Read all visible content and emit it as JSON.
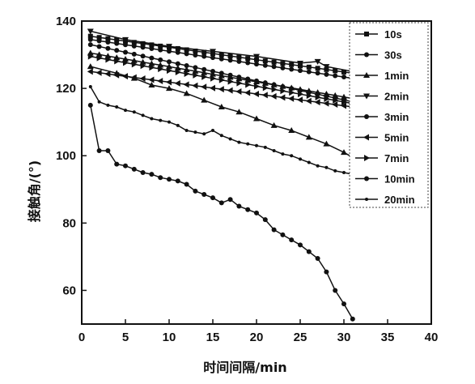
{
  "chart_data": {
    "type": "line",
    "xlabel": "时间间隔/min",
    "ylabel": "接触角/(°)",
    "xlim": [
      0,
      40
    ],
    "ylim": [
      50,
      140
    ],
    "xticks": [
      "0",
      "5",
      "10",
      "15",
      "20",
      "25",
      "30",
      "35",
      "40"
    ],
    "yticks": [
      "60",
      "80",
      "100",
      "120",
      "140"
    ],
    "legend_position": "top-right",
    "series_color": "#111111",
    "series": [
      {
        "name": "10s",
        "marker": "square",
        "x": [
          1,
          31
        ],
        "y": [
          135.5,
          124.5
        ]
      },
      {
        "name": "30s",
        "marker": "circle",
        "x": [
          1,
          31
        ],
        "y": [
          134.5,
          123.0
        ]
      },
      {
        "name": "1min",
        "marker": "triangle-up",
        "x": [
          1,
          31
        ],
        "y": [
          130.5,
          117.0
        ]
      },
      {
        "name": "2min",
        "marker": "triangle-down",
        "x": [
          1,
          5,
          10,
          15,
          20,
          25,
          27,
          28,
          31
        ],
        "y": [
          137.0,
          134.5,
          132.5,
          131.0,
          129.5,
          127.5,
          128.0,
          126.5,
          125.0
        ]
      },
      {
        "name": "3min",
        "marker": "circle",
        "x": [
          1,
          31
        ],
        "y": [
          133.0,
          116.0
        ]
      },
      {
        "name": "5min",
        "marker": "triangle-left",
        "x": [
          1,
          31
        ],
        "y": [
          125.0,
          114.5
        ]
      },
      {
        "name": "7min",
        "marker": "triangle-right",
        "x": [
          1,
          31
        ],
        "y": [
          129.5,
          115.5
        ]
      },
      {
        "name": "10min",
        "marker": "circle",
        "x": [
          1,
          2,
          3,
          4,
          5,
          6,
          7,
          8,
          9,
          10,
          11,
          12,
          13,
          14,
          15,
          16,
          17,
          18,
          19,
          20,
          21,
          22,
          23,
          24,
          25,
          26,
          27,
          28,
          29,
          30,
          31
        ],
        "y": [
          115.0,
          101.5,
          101.5,
          97.5,
          97.0,
          96.0,
          95.0,
          94.5,
          93.5,
          93.0,
          92.5,
          91.5,
          89.5,
          88.5,
          87.5,
          86.0,
          87.0,
          85.0,
          84.0,
          83.0,
          81.0,
          78.0,
          76.5,
          75.0,
          73.5,
          71.5,
          69.5,
          65.5,
          60.0,
          56.0,
          51.5
        ]
      },
      {
        "name": "20min",
        "marker": "dot",
        "x": [
          1,
          2,
          3,
          4,
          5,
          6,
          7,
          8,
          9,
          10,
          11,
          12,
          13,
          14,
          15,
          16,
          17,
          18,
          19,
          20,
          21,
          22,
          23,
          24,
          25,
          26,
          27,
          28,
          29,
          30,
          31
        ],
        "y": [
          120.5,
          116.0,
          115.0,
          114.5,
          113.5,
          113.0,
          112.0,
          111.0,
          110.5,
          110.0,
          109.0,
          107.5,
          107.0,
          106.5,
          107.5,
          106.0,
          105.0,
          104.0,
          103.5,
          103.0,
          102.5,
          101.5,
          100.5,
          100.0,
          99.0,
          98.0,
          97.0,
          96.5,
          95.5,
          95.0,
          94.5
        ]
      },
      {
        "name": "",
        "marker": "triangle-up",
        "x": [
          1,
          4,
          6,
          8,
          10,
          12,
          14,
          16,
          18,
          20,
          22,
          24,
          26,
          28,
          30,
          31
        ],
        "y": [
          126.5,
          124.5,
          123.0,
          121.0,
          120.0,
          118.5,
          116.5,
          114.5,
          113.0,
          111.0,
          109.0,
          107.5,
          105.5,
          103.5,
          101.0,
          99.5
        ]
      }
    ]
  }
}
